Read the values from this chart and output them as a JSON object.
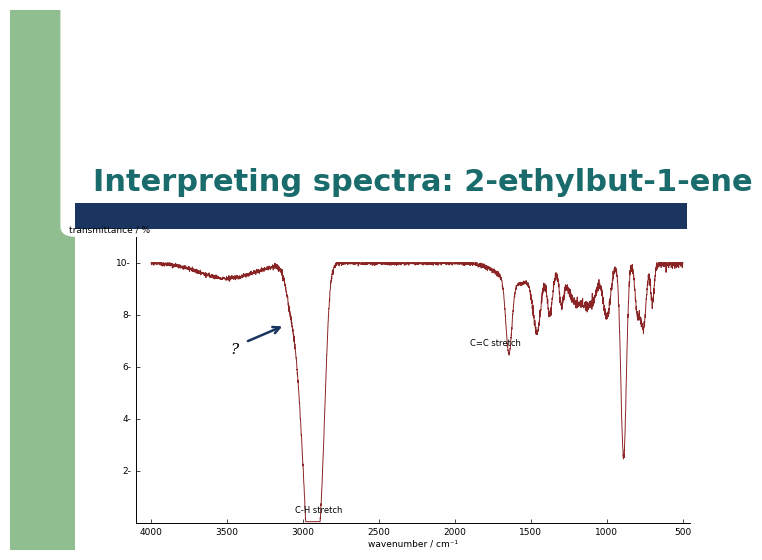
{
  "title": "Interpreting spectra: 2-ethylbut-1-ene",
  "title_color": "#1a6b6b",
  "title_fontsize": 22,
  "title_fontweight": "bold",
  "bg_color": "#ffffff",
  "green_rect_color": "#90be90",
  "blue_bar_color": "#1a3560",
  "spectrum_color": "#8b2525",
  "ylabel": "transmittance / %",
  "xlabel": "wavenumber / cm⁻¹",
  "annotation_ch": "C-H stretch",
  "annotation_cc": "C=C stretch",
  "question_mark": "?"
}
